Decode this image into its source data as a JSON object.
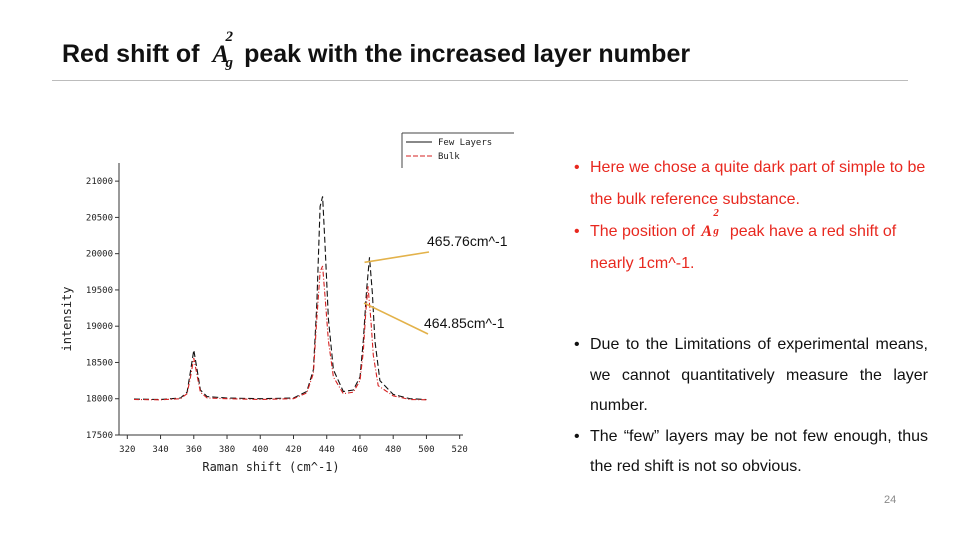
{
  "slide": {
    "title_before": "Red shift of",
    "title_math_base": "A",
    "title_math_sup": "2",
    "title_math_sub": "g",
    "title_after": "peak with the increased layer number",
    "page_number": "24"
  },
  "annotations": {
    "upper": "465.76cm^-1",
    "lower": "464.85cm^-1"
  },
  "bullets_red": [
    {
      "dot": "•",
      "text": "Here we chose a quite dark part of simple to be the bulk reference substance."
    },
    {
      "dot": "•",
      "text_before": "The position of",
      "math_base": "A",
      "math_sup": "2",
      "math_sub": "g",
      "text_after": "peak have a red shift of nearly 1cm^-1."
    }
  ],
  "bullets_black": [
    {
      "dot": "•",
      "text": "Due to the Limitations of experimental means, we cannot quantitatively measure the layer number."
    },
    {
      "dot": "•",
      "text": "The “few” layers may be not few enough, thus the red shift is not so obvious."
    }
  ],
  "colors": {
    "red_text": "#e8281f",
    "series_few": "#111111",
    "series_bulk": "#d62020",
    "arrow": "#e3b24a"
  },
  "chart_data": {
    "type": "line",
    "xlabel": "Raman shift (cm^-1)",
    "ylabel": "intensity",
    "xlim": [
      315,
      522
    ],
    "ylim": [
      17500,
      21250
    ],
    "x_ticks": [
      "320",
      "340",
      "360",
      "380",
      "400",
      "420",
      "440",
      "460",
      "480",
      "500",
      "520"
    ],
    "y_ticks": [
      "17500",
      "18000",
      "18500",
      "19000",
      "19500",
      "20000",
      "20500",
      "21000"
    ],
    "legend_position": "top-right",
    "series": [
      {
        "name": "Few Layers",
        "style": "dashed",
        "x": [
          324,
          340,
          352,
          356,
          358,
          360,
          362,
          364,
          368,
          380,
          400,
          420,
          428,
          432,
          434,
          436,
          437.5,
          439,
          441,
          444,
          450,
          456,
          460,
          462,
          464,
          465.76,
          467.5,
          469,
          472,
          480,
          490,
          500
        ],
        "y": [
          17995,
          17990,
          18010,
          18090,
          18380,
          18670,
          18400,
          18120,
          18030,
          18010,
          18000,
          18010,
          18100,
          18400,
          19300,
          20650,
          20790,
          20100,
          19100,
          18400,
          18100,
          18120,
          18300,
          18800,
          19500,
          19950,
          19450,
          18800,
          18250,
          18060,
          18000,
          17990
        ]
      },
      {
        "name": "Bulk",
        "style": "dash-dot",
        "x": [
          324,
          340,
          352,
          356,
          358,
          360,
          362,
          364,
          368,
          380,
          400,
          420,
          428,
          432,
          434,
          436,
          437.5,
          439,
          441,
          444,
          450,
          456,
          460,
          462,
          463.5,
          464.85,
          466.5,
          468,
          471,
          480,
          490,
          500
        ],
        "y": [
          17990,
          17985,
          18000,
          18070,
          18300,
          18560,
          18320,
          18090,
          18010,
          18000,
          17990,
          18000,
          18080,
          18350,
          19100,
          19750,
          19830,
          19400,
          18800,
          18300,
          18070,
          18090,
          18250,
          18650,
          19200,
          19550,
          19100,
          18600,
          18180,
          18040,
          17990,
          17985
        ]
      }
    ]
  }
}
